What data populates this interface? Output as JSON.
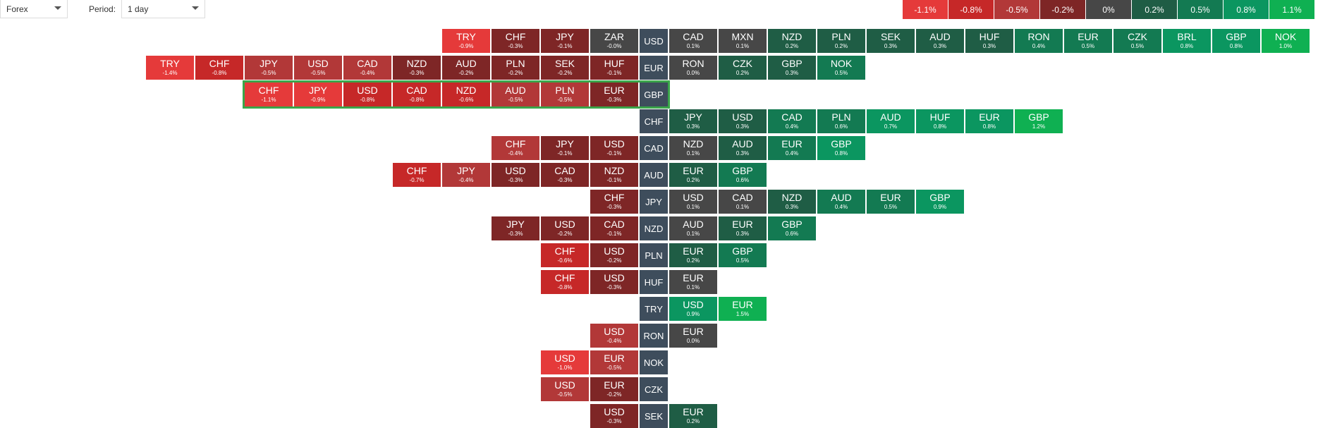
{
  "toolbar": {
    "market_select": "Forex",
    "period_label": "Period:",
    "period_select": "1 day"
  },
  "legend": [
    {
      "label": "-1.1%",
      "color": "#e53a3a"
    },
    {
      "label": "-0.8%",
      "color": "#c62828"
    },
    {
      "label": "-0.5%",
      "color": "#b23838"
    },
    {
      "label": "-0.2%",
      "color": "#7e2626"
    },
    {
      "label": "0%",
      "color": "#474747"
    },
    {
      "label": "0.2%",
      "color": "#1f5d45"
    },
    {
      "label": "0.5%",
      "color": "#137a52"
    },
    {
      "label": "0.8%",
      "color": "#0b9660"
    },
    {
      "label": "1.1%",
      "color": "#0fb052"
    }
  ],
  "highlighted_row": "GBP",
  "rows": [
    {
      "base": "USD",
      "neg": [
        {
          "c": "TRY",
          "v": "-0.9%"
        },
        {
          "c": "CHF",
          "v": "-0.3%"
        },
        {
          "c": "JPY",
          "v": "-0.1%"
        },
        {
          "c": "ZAR",
          "v": "-0.0%"
        }
      ],
      "pos": [
        {
          "c": "CAD",
          "v": "0.1%"
        },
        {
          "c": "MXN",
          "v": "0.1%"
        },
        {
          "c": "NZD",
          "v": "0.2%"
        },
        {
          "c": "PLN",
          "v": "0.2%"
        },
        {
          "c": "SEK",
          "v": "0.3%"
        },
        {
          "c": "AUD",
          "v": "0.3%"
        },
        {
          "c": "HUF",
          "v": "0.3%"
        },
        {
          "c": "RON",
          "v": "0.4%"
        },
        {
          "c": "EUR",
          "v": "0.5%"
        },
        {
          "c": "CZK",
          "v": "0.5%"
        },
        {
          "c": "BRL",
          "v": "0.8%"
        },
        {
          "c": "GBP",
          "v": "0.8%"
        },
        {
          "c": "NOK",
          "v": "1.0%"
        }
      ]
    },
    {
      "base": "EUR",
      "neg": [
        {
          "c": "TRY",
          "v": "-1.4%"
        },
        {
          "c": "CHF",
          "v": "-0.8%"
        },
        {
          "c": "JPY",
          "v": "-0.5%"
        },
        {
          "c": "USD",
          "v": "-0.5%"
        },
        {
          "c": "CAD",
          "v": "-0.4%"
        },
        {
          "c": "NZD",
          "v": "-0.3%"
        },
        {
          "c": "AUD",
          "v": "-0.2%"
        },
        {
          "c": "PLN",
          "v": "-0.2%"
        },
        {
          "c": "SEK",
          "v": "-0.2%"
        },
        {
          "c": "HUF",
          "v": "-0.1%"
        }
      ],
      "pos": [
        {
          "c": "RON",
          "v": "0.0%"
        },
        {
          "c": "CZK",
          "v": "0.2%"
        },
        {
          "c": "GBP",
          "v": "0.3%"
        },
        {
          "c": "NOK",
          "v": "0.5%"
        }
      ]
    },
    {
      "base": "GBP",
      "neg": [
        {
          "c": "CHF",
          "v": "-1.1%"
        },
        {
          "c": "JPY",
          "v": "-0.9%"
        },
        {
          "c": "USD",
          "v": "-0.8%"
        },
        {
          "c": "CAD",
          "v": "-0.8%"
        },
        {
          "c": "NZD",
          "v": "-0.6%"
        },
        {
          "c": "AUD",
          "v": "-0.5%"
        },
        {
          "c": "PLN",
          "v": "-0.5%"
        },
        {
          "c": "EUR",
          "v": "-0.3%"
        }
      ],
      "pos": []
    },
    {
      "base": "CHF",
      "neg": [],
      "pos": [
        {
          "c": "JPY",
          "v": "0.3%"
        },
        {
          "c": "USD",
          "v": "0.3%"
        },
        {
          "c": "CAD",
          "v": "0.4%"
        },
        {
          "c": "PLN",
          "v": "0.6%"
        },
        {
          "c": "AUD",
          "v": "0.7%"
        },
        {
          "c": "HUF",
          "v": "0.8%"
        },
        {
          "c": "EUR",
          "v": "0.8%"
        },
        {
          "c": "GBP",
          "v": "1.2%"
        }
      ]
    },
    {
      "base": "CAD",
      "neg": [
        {
          "c": "CHF",
          "v": "-0.4%"
        },
        {
          "c": "JPY",
          "v": "-0.1%"
        },
        {
          "c": "USD",
          "v": "-0.1%"
        }
      ],
      "pos": [
        {
          "c": "NZD",
          "v": "0.1%"
        },
        {
          "c": "AUD",
          "v": "0.3%"
        },
        {
          "c": "EUR",
          "v": "0.4%"
        },
        {
          "c": "GBP",
          "v": "0.8%"
        }
      ]
    },
    {
      "base": "AUD",
      "neg": [
        {
          "c": "CHF",
          "v": "-0.7%"
        },
        {
          "c": "JPY",
          "v": "-0.4%"
        },
        {
          "c": "USD",
          "v": "-0.3%"
        },
        {
          "c": "CAD",
          "v": "-0.3%"
        },
        {
          "c": "NZD",
          "v": "-0.1%"
        }
      ],
      "pos": [
        {
          "c": "EUR",
          "v": "0.2%"
        },
        {
          "c": "GBP",
          "v": "0.6%"
        }
      ]
    },
    {
      "base": "JPY",
      "neg": [
        {
          "c": "CHF",
          "v": "-0.3%"
        }
      ],
      "pos": [
        {
          "c": "USD",
          "v": "0.1%"
        },
        {
          "c": "CAD",
          "v": "0.1%"
        },
        {
          "c": "NZD",
          "v": "0.3%"
        },
        {
          "c": "AUD",
          "v": "0.4%"
        },
        {
          "c": "EUR",
          "v": "0.5%"
        },
        {
          "c": "GBP",
          "v": "0.9%"
        }
      ]
    },
    {
      "base": "NZD",
      "neg": [
        {
          "c": "JPY",
          "v": "-0.3%"
        },
        {
          "c": "USD",
          "v": "-0.2%"
        },
        {
          "c": "CAD",
          "v": "-0.1%"
        }
      ],
      "pos": [
        {
          "c": "AUD",
          "v": "0.1%"
        },
        {
          "c": "EUR",
          "v": "0.3%"
        },
        {
          "c": "GBP",
          "v": "0.6%"
        }
      ]
    },
    {
      "base": "PLN",
      "neg": [
        {
          "c": "CHF",
          "v": "-0.6%"
        },
        {
          "c": "USD",
          "v": "-0.2%"
        }
      ],
      "pos": [
        {
          "c": "EUR",
          "v": "0.2%"
        },
        {
          "c": "GBP",
          "v": "0.5%"
        }
      ]
    },
    {
      "base": "HUF",
      "neg": [
        {
          "c": "CHF",
          "v": "-0.8%"
        },
        {
          "c": "USD",
          "v": "-0.3%"
        }
      ],
      "pos": [
        {
          "c": "EUR",
          "v": "0.1%"
        }
      ]
    },
    {
      "base": "TRY",
      "neg": [],
      "pos": [
        {
          "c": "USD",
          "v": "0.9%"
        },
        {
          "c": "EUR",
          "v": "1.5%"
        }
      ]
    },
    {
      "base": "RON",
      "neg": [
        {
          "c": "USD",
          "v": "-0.4%"
        }
      ],
      "pos": [
        {
          "c": "EUR",
          "v": "0.0%"
        }
      ]
    },
    {
      "base": "NOK",
      "neg": [
        {
          "c": "USD",
          "v": "-1.0%"
        },
        {
          "c": "EUR",
          "v": "-0.5%"
        }
      ],
      "pos": []
    },
    {
      "base": "CZK",
      "neg": [
        {
          "c": "USD",
          "v": "-0.5%"
        },
        {
          "c": "EUR",
          "v": "-0.2%"
        }
      ],
      "pos": []
    },
    {
      "base": "SEK",
      "neg": [
        {
          "c": "USD",
          "v": "-0.3%"
        }
      ],
      "pos": [
        {
          "c": "EUR",
          "v": "0.2%"
        }
      ]
    }
  ]
}
